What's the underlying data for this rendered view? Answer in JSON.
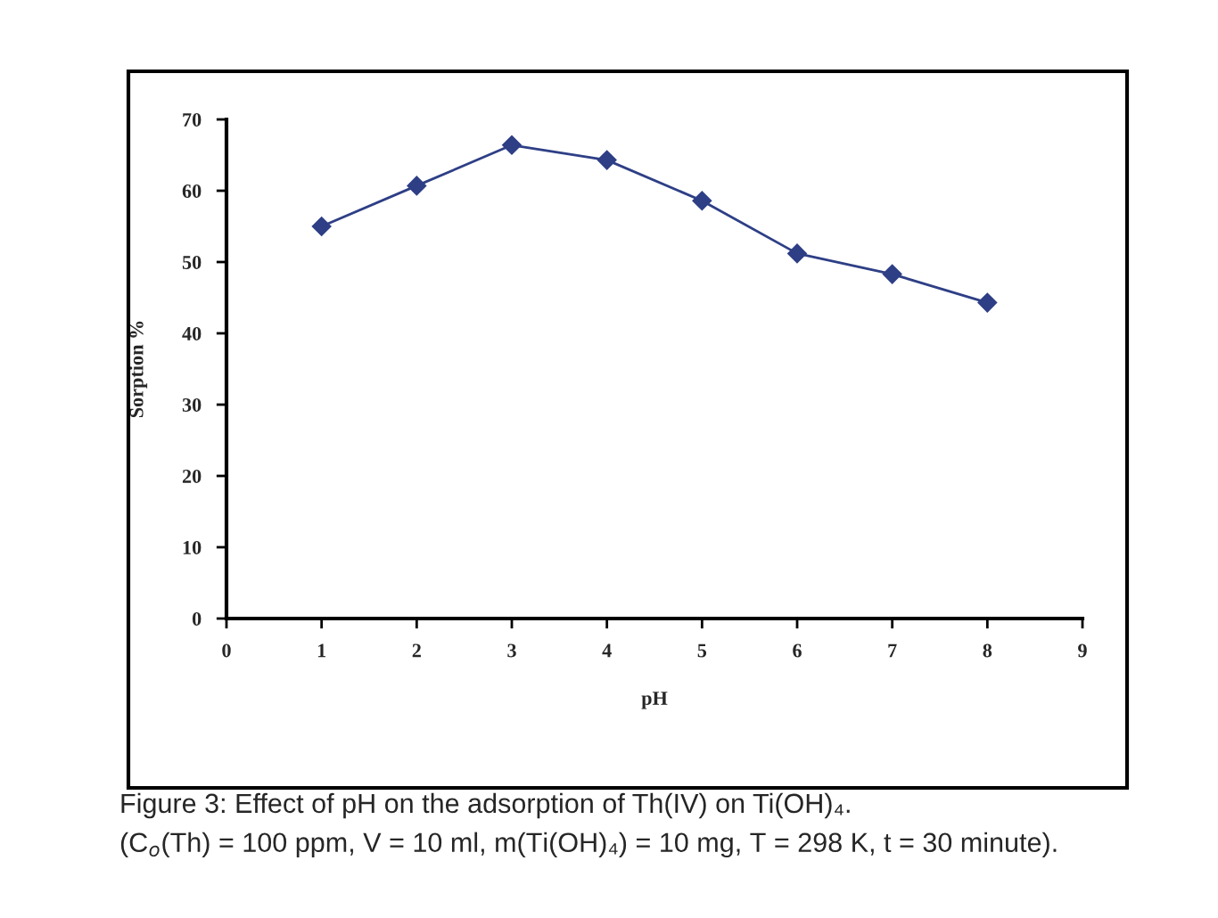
{
  "chart_data": {
    "type": "line",
    "xlabel": "pH",
    "ylabel": "Sorption %",
    "x": [
      1,
      2,
      3,
      4,
      5,
      6,
      7,
      8
    ],
    "series": [
      {
        "color": "#2e3f86",
        "values": [
          55.0,
          60.7,
          66.4,
          64.3,
          58.6,
          51.2,
          48.3,
          44.3
        ]
      }
    ],
    "xlim": [
      0,
      9
    ],
    "xticks": [
      0,
      1,
      2,
      3,
      4,
      5,
      6,
      7,
      8,
      9
    ],
    "ylim": [
      0,
      70
    ],
    "yticks": [
      0,
      10,
      20,
      30,
      40,
      50,
      60,
      70
    ],
    "marker": "diamond",
    "line_style": "solid",
    "grid": false,
    "legend": false,
    "annotations": [
      "Figure 3: Effect of pH on the adsorption of Th(IV) on Ti(OH)₄.",
      "(C$_{o}$(Th) = 100 ppm, V = 10 ml, m(Ti(OH)₄) = 10 mg, T = 298 K, t = 30 minute)."
    ]
  }
}
